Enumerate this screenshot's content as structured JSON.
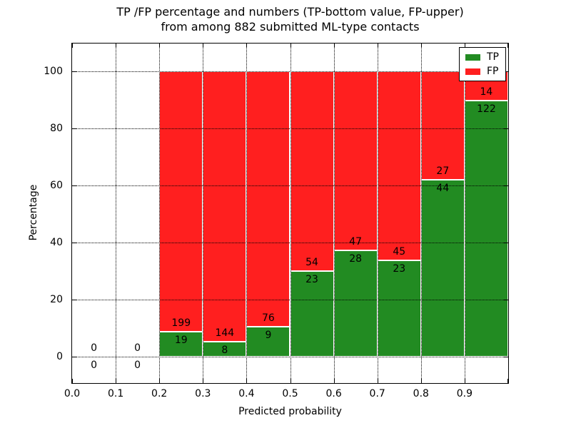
{
  "figure": {
    "title_line1": "TP /FP percentage and numbers (TP-bottom value, FP-upper)",
    "title_line2": "from among 882 submitted ML-type contacts",
    "background": "#ffffff"
  },
  "chart_data": {
    "type": "bar",
    "stacked": true,
    "normalized": "each bin scaled to 100%",
    "title": "TP /FP percentage and numbers (TP-bottom value, FP-upper)\nfrom among 882 submitted ML-type contacts",
    "xlabel": "Predicted probability",
    "ylabel": "Percentage",
    "total_submitted": 882,
    "bin_starts": [
      0.0,
      0.1,
      0.2,
      0.3,
      0.4,
      0.5,
      0.6,
      0.7,
      0.8,
      0.9
    ],
    "bin_width": 0.1,
    "series": [
      {
        "name": "TP",
        "color": "#228b22",
        "counts": [
          0,
          0,
          19,
          8,
          9,
          23,
          28,
          23,
          44,
          122
        ]
      },
      {
        "name": "FP",
        "color": "#ff1f1f",
        "counts": [
          0,
          0,
          199,
          144,
          76,
          54,
          47,
          45,
          27,
          14
        ]
      }
    ],
    "tp_percent_per_bin": [
      0,
      0,
      8.7,
      5.3,
      10.6,
      29.9,
      37.3,
      33.8,
      62.0,
      89.7
    ],
    "x_tick_labels": [
      "0.0",
      "0.1",
      "0.2",
      "0.3",
      "0.4",
      "0.5",
      "0.6",
      "0.7",
      "0.8",
      "0.9"
    ],
    "y_ticks": [
      0,
      20,
      40,
      60,
      80,
      100
    ],
    "xlim": [
      0.0,
      1.0
    ],
    "ylim": [
      -9.3,
      109.8
    ],
    "grid": "dotted, drawn above bars",
    "bar_edge_color": "#ffffff",
    "legend": {
      "position": "upper right",
      "entries": [
        {
          "label": "TP",
          "color": "#228b22"
        },
        {
          "label": "FP",
          "color": "#ff1f1f"
        }
      ]
    }
  }
}
